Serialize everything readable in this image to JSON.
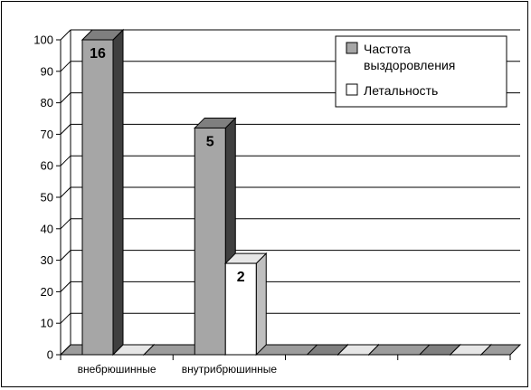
{
  "chart_data": {
    "type": "bar",
    "categories": [
      "внебрюшинные",
      "внутрибрюшинные",
      "",
      ""
    ],
    "series": [
      {
        "name": "Частота выздоровления",
        "values": [
          100,
          72,
          0,
          0
        ],
        "data_labels": [
          "16",
          "5",
          "",
          ""
        ]
      },
      {
        "name": "Летальность",
        "values": [
          0,
          29,
          0,
          0
        ],
        "data_labels": [
          "",
          "2",
          "",
          ""
        ]
      }
    ],
    "ylim": [
      0,
      100
    ],
    "yticks": [
      0,
      10,
      20,
      30,
      40,
      50,
      60,
      70,
      80,
      90,
      100
    ],
    "grid": true,
    "legend_position": "top-right",
    "legend_lines": [
      [
        "Частота",
        "выздоровления"
      ],
      [
        "Летальность"
      ]
    ],
    "colors": {
      "series1_front": "#a6a6a6",
      "series1_side": "#3f3f3f",
      "series1_top": "#7f7f7f",
      "series2_front": "#ffffff",
      "series2_side": "#bfbfbf",
      "series2_top": "#e6e6e6",
      "floor": "#9c9c9c"
    }
  }
}
